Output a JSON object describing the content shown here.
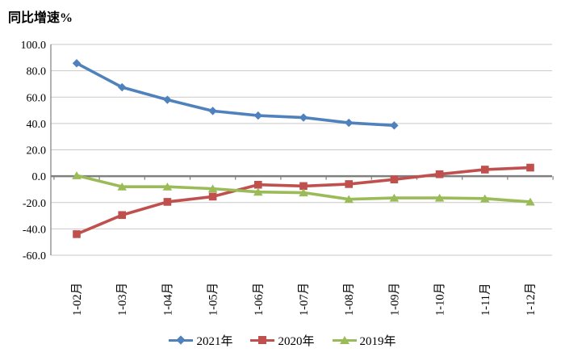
{
  "page": {
    "title": "同比增速%"
  },
  "chart_data": {
    "type": "line",
    "title": "同比增速%",
    "categories": [
      "1-02月",
      "1-03月",
      "1-04月",
      "1-05月",
      "1-06月",
      "1-07月",
      "1-08月",
      "1-09月",
      "1-10月",
      "1-11月",
      "1-12月"
    ],
    "series": [
      {
        "name": "2021年",
        "color": "#4F81BD",
        "marker": "diamond",
        "values": [
          85.7,
          67.5,
          58.0,
          49.5,
          46.0,
          44.5,
          40.5,
          38.5
        ]
      },
      {
        "name": "2020年",
        "color": "#C0504D",
        "marker": "square",
        "values": [
          -44.0,
          -29.5,
          -19.5,
          -15.5,
          -6.5,
          -7.5,
          -6.0,
          -2.5,
          1.5,
          5.0,
          6.5
        ]
      },
      {
        "name": "2019年",
        "color": "#9BBB59",
        "marker": "triangle",
        "values": [
          0.5,
          -8.0,
          -8.0,
          -9.5,
          -12.0,
          -12.5,
          -17.5,
          -16.5,
          -16.5,
          -17.0,
          -19.5
        ]
      }
    ],
    "y_axis": {
      "min": -60,
      "max": 100,
      "step": 20,
      "tick_labels": [
        "100.0",
        "80.0",
        "60.0",
        "40.0",
        "20.0",
        "0.0",
        "-20.0",
        "-40.0",
        "-60.0"
      ]
    },
    "grid": true,
    "legend_position": "bottom"
  },
  "colors": {
    "gridline": "#C9C9C9",
    "axis": "#7F7F7F",
    "text": "#000000",
    "background": "#FFFFFF"
  }
}
